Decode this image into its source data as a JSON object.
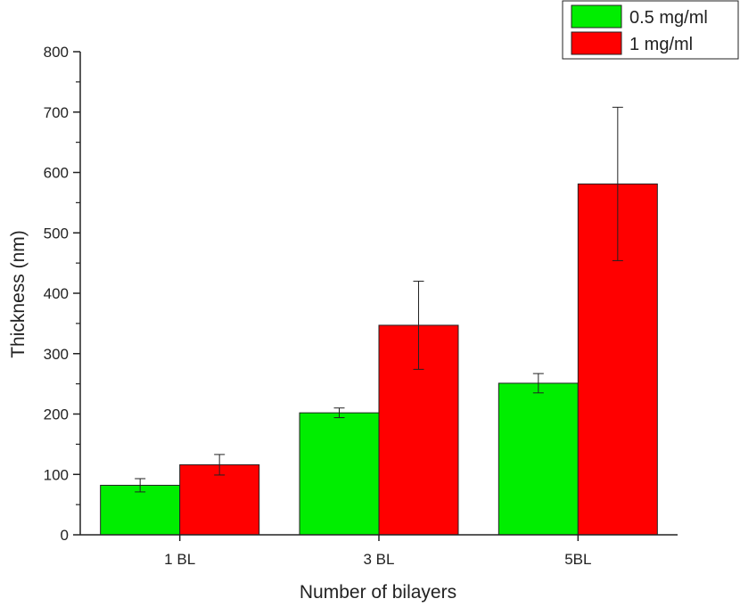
{
  "chart_data": {
    "type": "bar",
    "categories": [
      "1 BL",
      "3 BL",
      "5BL"
    ],
    "series": [
      {
        "name": "0.5 mg/ml",
        "color": "#00ee00",
        "values": [
          82,
          202,
          251
        ],
        "errors": [
          11,
          8,
          16
        ]
      },
      {
        "name": "1 mg/ml",
        "color": "#ff0000",
        "values": [
          116,
          347,
          581
        ],
        "errors": [
          17,
          73,
          127
        ]
      }
    ],
    "xlabel": "Number of bilayers",
    "ylabel": "Thickness (nm)",
    "ylim": [
      0,
      800
    ],
    "yticks": [
      0,
      100,
      200,
      300,
      400,
      500,
      600,
      700,
      800
    ],
    "grid": false,
    "legend": "top-right"
  }
}
